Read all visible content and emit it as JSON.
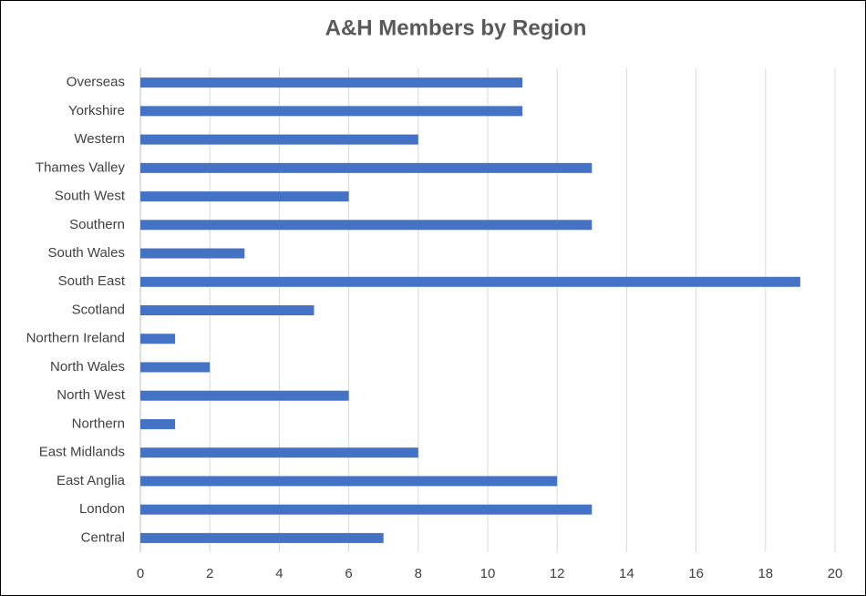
{
  "chart_data": {
    "type": "bar",
    "orientation": "horizontal",
    "title": "A&H Members by Region",
    "categories": [
      "Central",
      "London",
      "East Anglia",
      "East Midlands",
      "Northern",
      "North West",
      "North Wales",
      "Northern Ireland",
      "Scotland",
      "South East",
      "South Wales",
      "Southern",
      "South West",
      "Thames Valley",
      "Western",
      "Yorkshire",
      "Overseas"
    ],
    "values": [
      7,
      13,
      12,
      8,
      1,
      6,
      2,
      1,
      5,
      19,
      3,
      13,
      6,
      13,
      8,
      11,
      11
    ],
    "color": "#4472c4",
    "xlim": [
      0,
      20
    ],
    "xticks": [
      0,
      2,
      4,
      6,
      8,
      10,
      12,
      14,
      16,
      18,
      20
    ],
    "grid": true
  }
}
